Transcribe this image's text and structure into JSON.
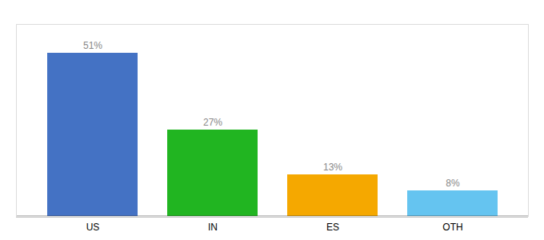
{
  "chart_data": {
    "type": "bar",
    "categories": [
      "US",
      "IN",
      "ES",
      "OTH"
    ],
    "values": [
      51,
      27,
      13,
      8
    ],
    "value_labels": [
      "51%",
      "27%",
      "13%",
      "8%"
    ],
    "colors": [
      "#4472c4",
      "#21b521",
      "#f5a800",
      "#65c4f0"
    ],
    "ylim": [
      0,
      60
    ],
    "grid": false,
    "data_labels": true,
    "tick_labels": "x"
  }
}
